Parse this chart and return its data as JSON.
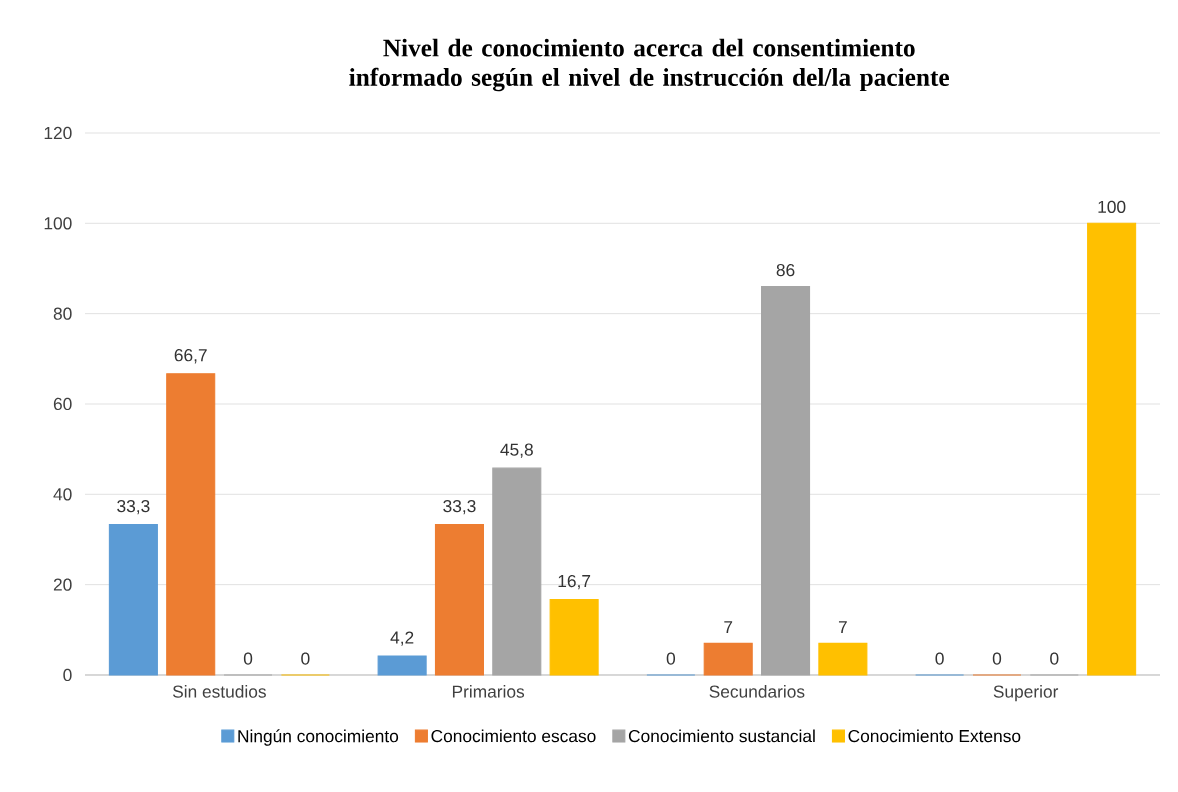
{
  "chart_data": {
    "type": "bar",
    "title": "Nivel de conocimiento acerca del consentimiento informado según el nivel de instrucción del/la paciente",
    "categories": [
      "Sin estudios",
      "Primarios",
      "Secundarios",
      "Superior"
    ],
    "series": [
      {
        "name": "Ningún conocimiento",
        "color": "#5b9bd5",
        "values": [
          33.3,
          4.2,
          0,
          0
        ],
        "value_labels": [
          "33,3",
          "4,2",
          "0",
          "0"
        ]
      },
      {
        "name": "Conocimiento escaso",
        "color": "#ed7d31",
        "values": [
          66.7,
          33.3,
          7,
          0
        ],
        "value_labels": [
          "66,7",
          "33,3",
          "7",
          "0"
        ]
      },
      {
        "name": "Conocimiento sustancial",
        "color": "#a5a5a5",
        "values": [
          0,
          45.8,
          86,
          0
        ],
        "value_labels": [
          "0",
          "45,8",
          "86",
          "0"
        ]
      },
      {
        "name": "Conocimiento Extenso",
        "color": "#ffc000",
        "values": [
          0,
          16.7,
          7,
          100
        ],
        "value_labels": [
          "0",
          "16,7",
          "7",
          "100"
        ]
      }
    ],
    "ylim": [
      0,
      120
    ],
    "yticks": [
      0,
      20,
      40,
      60,
      80,
      100,
      120
    ],
    "grid": "y",
    "legend": "bottom"
  }
}
